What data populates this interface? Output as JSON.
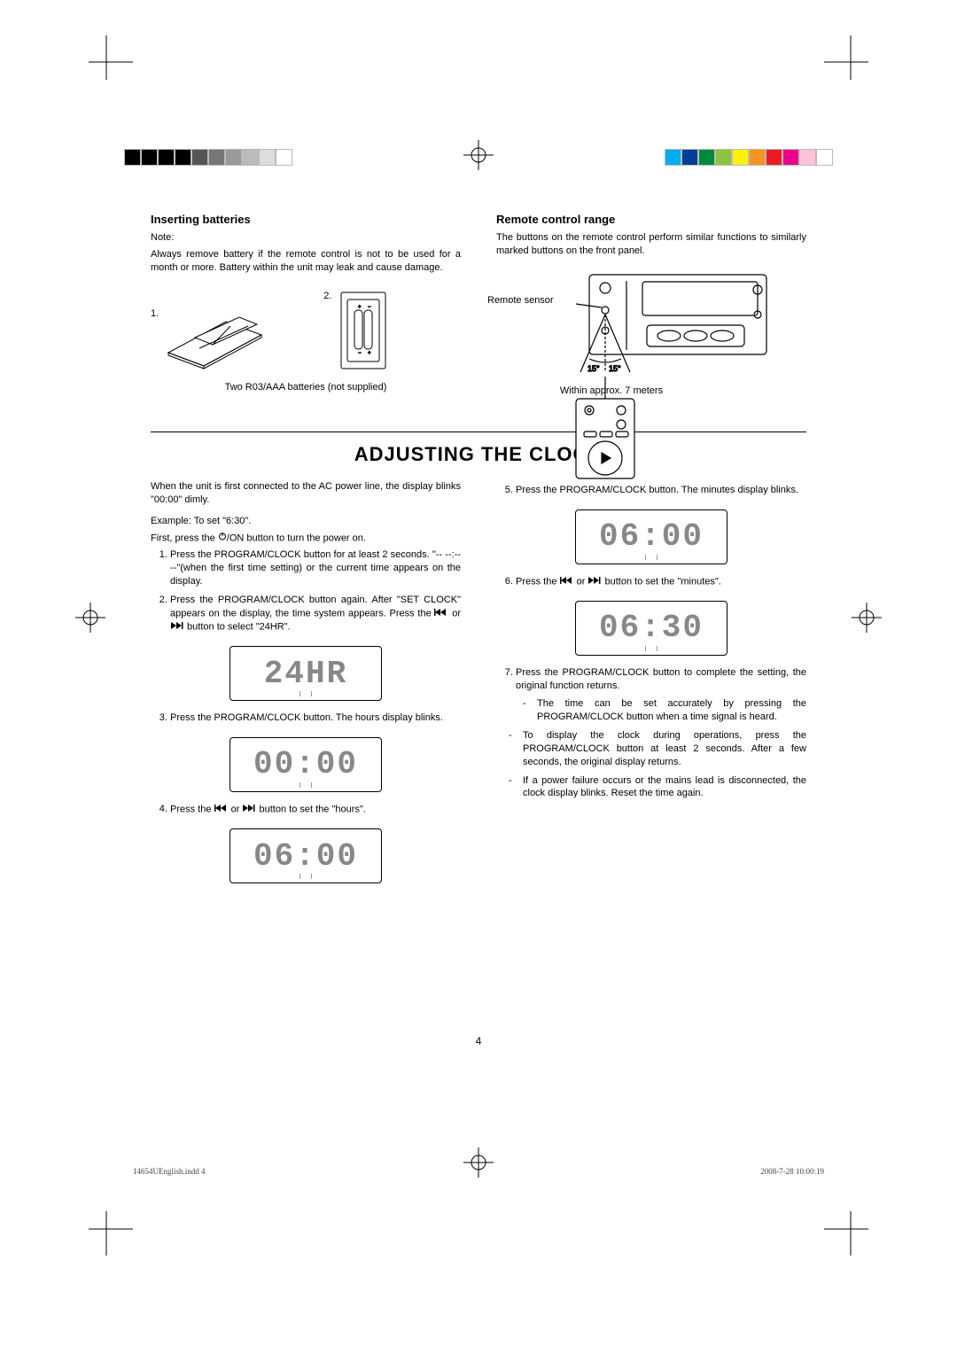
{
  "swatches_left": [
    "#000000",
    "#000000",
    "#000000",
    "#000000",
    "#555555",
    "#777777",
    "#999999",
    "#bbbbbb",
    "#dddddd",
    "#ffffff"
  ],
  "swatches_right": [
    "#00aef0",
    "#003f98",
    "#008a3c",
    "#8bc53f",
    "#fff200",
    "#f7941d",
    "#ed1c24",
    "#ec008c",
    "#ffc2d6",
    "#ffffff"
  ],
  "inserting": {
    "heading": "Inserting batteries",
    "note_label": "Note:",
    "note_text": "Always remove battery if the remote control is not to be used for a month or more. Battery within the unit may leak and cause damage.",
    "fig1_num": "1.",
    "fig2_num": "2.",
    "caption": "Two R03/AAA batteries (not supplied)"
  },
  "remote": {
    "heading": "Remote control range",
    "text": "The buttons on the remote control perform similar functions to similarly marked buttons on the front panel.",
    "sensor_label": "Remote sensor",
    "angle_left": "15°",
    "angle_right": "15°",
    "distance": "Within approx. 7 meters"
  },
  "clock": {
    "title": "ADJUSTING THE CLOCK",
    "intro": "When the unit is first connected to the AC power line, the display blinks \"00:00\" dimly.",
    "example_label": "Example: To set \"6:30\".",
    "first_line_a": "First, press the ",
    "first_line_b": "/ON button to turn the power on.",
    "step1": "Press the PROGRAM/CLOCK button for at least 2 seconds. \"-- --:-- --\"(when the first time setting) or the current time appears on the display.",
    "step2_a": "Press the PROGRAM/CLOCK button again. After \"SET CLOCK\" appears on the display, the time system appears. Press the ",
    "step2_b": " or ",
    "step2_c": " button to select \"24HR\".",
    "lcd_24hr": "24HR",
    "step3": "Press the PROGRAM/CLOCK button. The hours display blinks.",
    "lcd_0000": "00:00",
    "step4_a": "Press the ",
    "step4_b": " or ",
    "step4_c": " button to set the \"hours\".",
    "lcd_0600a": "06:00",
    "step5": "Press the PROGRAM/CLOCK button. The minutes display blinks.",
    "lcd_0600b": "06:00",
    "step6_a": "Press the ",
    "step6_b": " or ",
    "step6_c": " button to set the \"minutes\".",
    "lcd_0630": "06:30",
    "step7": "Press the PROGRAM/CLOCK button to complete the setting, the original function returns.",
    "subnote": "The time can be set accurately by pressing the PROGRAM/CLOCK button when a time signal is heard.",
    "note_a": "To display the clock during operations, press the PROGRAM/CLOCK button at least 2 seconds. After a few seconds, the original display returns.",
    "note_b": "If a power failure occurs or the mains lead is disconnected, the clock display blinks. Reset the time again."
  },
  "page_number": "4",
  "footer_file": "14654UEnglish.indd   4",
  "footer_date": "2008-7-28   10:00:19"
}
